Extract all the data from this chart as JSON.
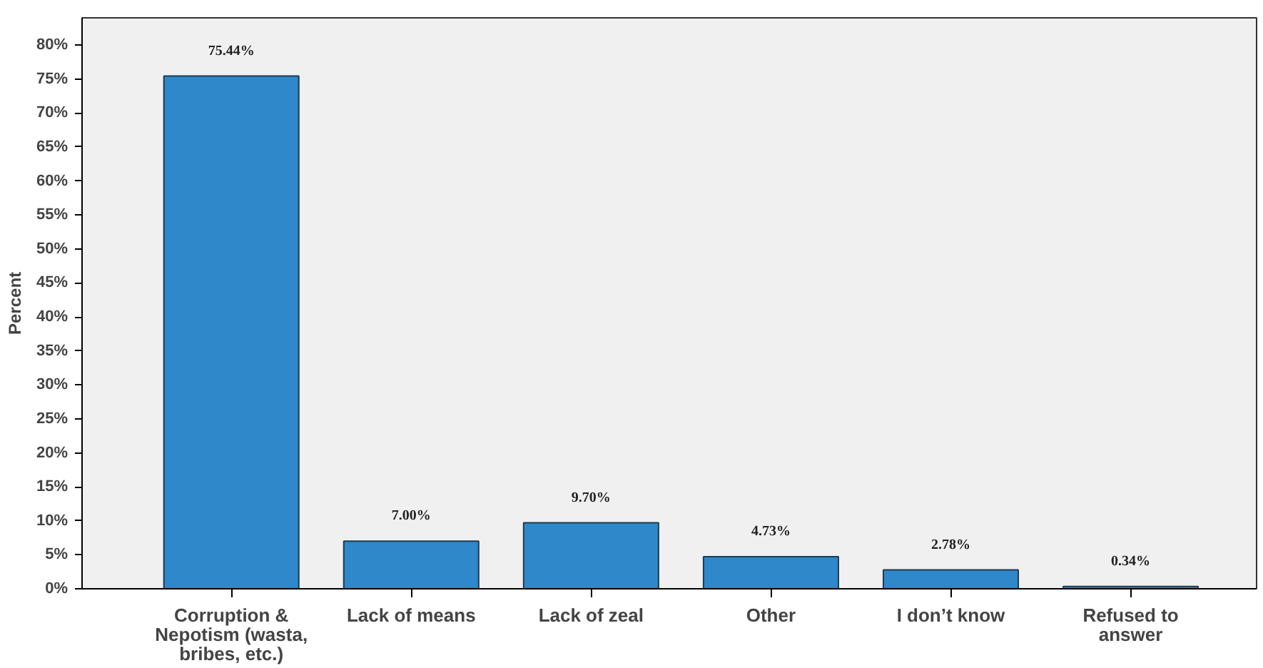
{
  "chart_data": {
    "type": "bar",
    "ylabel": "Percent",
    "categories": [
      "Corruption & Nepotism (wasta, bribes, etc.)",
      "Lack of means",
      "Lack of zeal",
      "Other",
      "I don’t know",
      "Refused to answer"
    ],
    "values": [
      75.44,
      7.0,
      9.7,
      4.73,
      2.78,
      0.34
    ],
    "value_labels": [
      "75.44%",
      "7.00%",
      "9.70%",
      "4.73%",
      "2.78%",
      "0.34%"
    ],
    "color": "#2e88c9",
    "ylim": [
      0,
      84
    ],
    "yticks": [
      {
        "value": 0,
        "label": "0%"
      },
      {
        "value": 5,
        "label": "5%"
      },
      {
        "value": 10,
        "label": "10%"
      },
      {
        "value": 15,
        "label": "15%"
      },
      {
        "value": 20,
        "label": "20%"
      },
      {
        "value": 25,
        "label": "25%"
      },
      {
        "value": 30,
        "label": "30%"
      },
      {
        "value": 35,
        "label": "35%"
      },
      {
        "value": 40,
        "label": "40%"
      },
      {
        "value": 45,
        "label": "45%"
      },
      {
        "value": 50,
        "label": "50%"
      },
      {
        "value": 55,
        "label": "55%"
      },
      {
        "value": 60,
        "label": "60%"
      },
      {
        "value": 65,
        "label": "65%"
      },
      {
        "value": 70,
        "label": "70%"
      },
      {
        "value": 75,
        "label": "75%"
      },
      {
        "value": 80,
        "label": "80%"
      }
    ],
    "grid": false
  }
}
